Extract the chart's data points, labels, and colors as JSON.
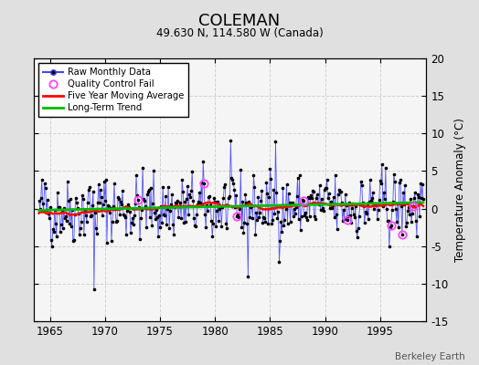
{
  "title": "COLEMAN",
  "subtitle": "49.630 N, 114.580 W (Canada)",
  "ylabel_right": "Temperature Anomaly (°C)",
  "watermark": "Berkeley Earth",
  "xmin": 1963.5,
  "xmax": 1999.2,
  "ymin": -15,
  "ymax": 20,
  "yticks": [
    -15,
    -10,
    -5,
    0,
    5,
    10,
    15,
    20
  ],
  "xticks": [
    1965,
    1970,
    1975,
    1980,
    1985,
    1990,
    1995
  ],
  "bg_color": "#e0e0e0",
  "plot_bg_color": "#f5f5f5",
  "grid_color": "#d0d0d0",
  "raw_line_color": "#4444ff",
  "raw_dot_color": "#000000",
  "ma_color": "#ff0000",
  "trend_color": "#00bb00",
  "qc_color": "#ff44ff",
  "seed": 42,
  "start_year": 1964,
  "end_year": 1998
}
